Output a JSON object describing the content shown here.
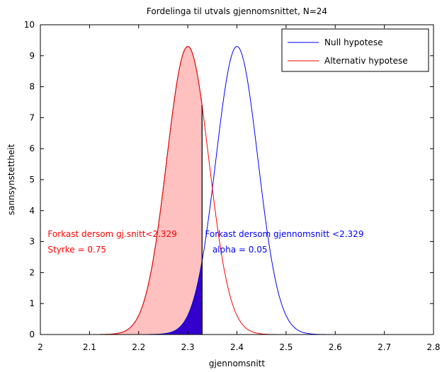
{
  "chart_data": {
    "type": "area",
    "title": "Fordelinga til utvals gjennomsnittet, N=24",
    "xlabel": "gjennomsnitt",
    "ylabel": "sannsynstettheit",
    "xlim": [
      2.0,
      2.8
    ],
    "ylim": [
      0,
      10
    ],
    "xticks": [
      "2",
      "2.1",
      "2.2",
      "2.3",
      "2.4",
      "2.5",
      "2.6",
      "2.7",
      "2.8"
    ],
    "yticks": [
      "0",
      "1",
      "2",
      "3",
      "4",
      "5",
      "6",
      "7",
      "8",
      "9",
      "10"
    ],
    "grid": false,
    "legend_position": "top-right",
    "critical_value": 2.329,
    "series": [
      {
        "name": "Null hypotese",
        "color": "#0000ff",
        "mean": 2.4,
        "sd": 0.0429,
        "x": [
          2.15,
          2.2,
          2.25,
          2.3,
          2.329,
          2.35,
          2.4,
          2.45,
          2.5,
          2.55,
          2.6
        ],
        "y": [
          0.0,
          0.0,
          0.2,
          0.63,
          2.38,
          4.73,
          9.3,
          4.73,
          0.63,
          0.02,
          0.0
        ]
      },
      {
        "name": "Alternativ hypotese",
        "color": "#ff0000",
        "mean": 2.3,
        "sd": 0.0429,
        "x": [
          2.05,
          2.1,
          2.15,
          2.2,
          2.25,
          2.3,
          2.329,
          2.35,
          2.4,
          2.45,
          2.5
        ],
        "y": [
          0.0,
          0.0,
          0.02,
          0.63,
          4.73,
          9.3,
          7.15,
          4.73,
          0.63,
          0.02,
          0.0
        ]
      }
    ],
    "annotations": [
      {
        "text": "Forkast dersom gj.snitt<2.329",
        "color": "#ff0000",
        "x": 2.015,
        "y": 3.15
      },
      {
        "text": "Styrke = 0.75",
        "color": "#ff0000",
        "x": 2.015,
        "y": 2.65
      },
      {
        "text": "Forkast dersom gjennomsnitt <2.329",
        "color": "#0000ff",
        "x": 2.335,
        "y": 3.15
      },
      {
        "text": "alpha = 0.05",
        "color": "#0000ff",
        "x": 2.35,
        "y": 2.65
      }
    ],
    "shading": [
      {
        "series": "Alternativ hypotese",
        "color": "#ffc0c0",
        "x_range": [
          2.05,
          2.329
        ]
      },
      {
        "series": "Null hypotese",
        "color": "#3300cc",
        "x_range": [
          2.2,
          2.329
        ]
      }
    ]
  }
}
